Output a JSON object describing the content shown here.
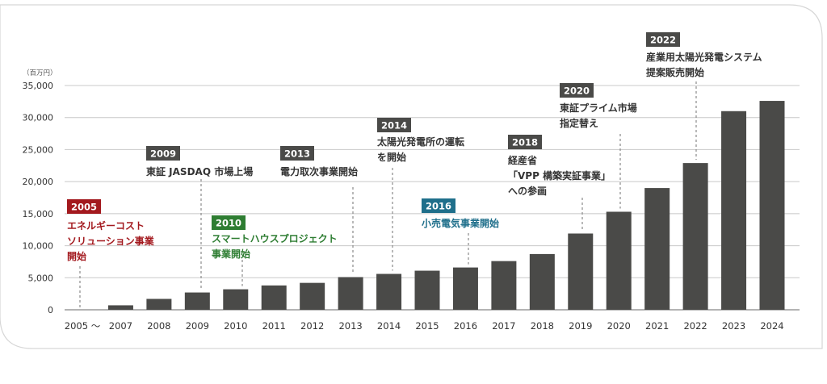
{
  "chart_data": {
    "type": "bar",
    "unit_label": "（百万円）",
    "categories": [
      "2005 ～",
      "2007",
      "2008",
      "2009",
      "2010",
      "2011",
      "2012",
      "2013",
      "2014",
      "2015",
      "2016",
      "2017",
      "2018",
      "2019",
      "2020",
      "2021",
      "2022",
      "2023",
      "2024"
    ],
    "values": [
      0,
      700,
      1700,
      2700,
      3200,
      3800,
      4200,
      5100,
      5600,
      6100,
      6600,
      7600,
      8700,
      11900,
      15300,
      19000,
      22900,
      31000,
      32600
    ],
    "ylim": [
      0,
      35000
    ],
    "yticks": [
      0,
      5000,
      10000,
      15000,
      20000,
      25000,
      30000,
      35000
    ],
    "ytick_labels": [
      "0",
      "5,000",
      "10,000",
      "15,000",
      "20,000",
      "25,000",
      "30,000",
      "35,000"
    ],
    "grid": true,
    "colors": {
      "bar": "#4a4a48",
      "grid": "#c8c8c8",
      "axis_text": "#333333",
      "year_badge": "#4a4a48"
    },
    "annotations": [
      {
        "year": "2005",
        "badge_color": "#a3191e",
        "text_color": "#a3191e",
        "lines": [
          "エネルギーコスト",
          "ソリューション事業",
          "開始"
        ],
        "bar": "2005 ～"
      },
      {
        "year": "2009",
        "badge_color": "#4a4a48",
        "text_color": "#333333",
        "lines": [
          "東証 JASDAQ 市場上場"
        ],
        "bar": "2009"
      },
      {
        "year": "2010",
        "badge_color": "#2e7d32",
        "text_color": "#2e7d32",
        "lines": [
          "スマートハウスプロジェクト",
          "事業開始"
        ],
        "bar": "2010"
      },
      {
        "year": "2013",
        "badge_color": "#4a4a48",
        "text_color": "#333333",
        "lines": [
          "電力取次事業開始"
        ],
        "bar": "2013"
      },
      {
        "year": "2014",
        "badge_color": "#4a4a48",
        "text_color": "#333333",
        "lines": [
          "太陽光発電所の運転",
          "を開始"
        ],
        "bar": "2014"
      },
      {
        "year": "2016",
        "badge_color": "#1f6f8b",
        "text_color": "#1f6f8b",
        "lines": [
          "小売電気事業開始"
        ],
        "bar": "2016"
      },
      {
        "year": "2018",
        "badge_color": "#4a4a48",
        "text_color": "#333333",
        "lines": [
          "経産省",
          "「VPP 構築実証事業」",
          "への参画"
        ],
        "bar": "2019"
      },
      {
        "year": "2020",
        "badge_color": "#4a4a48",
        "text_color": "#333333",
        "lines": [
          "東証プライム市場",
          "指定替え"
        ],
        "bar": "2020"
      },
      {
        "year": "2022",
        "badge_color": "#4a4a48",
        "text_color": "#333333",
        "lines": [
          "産業用太陽光発電システム",
          "提案販売開始"
        ],
        "bar": "2022"
      }
    ]
  }
}
